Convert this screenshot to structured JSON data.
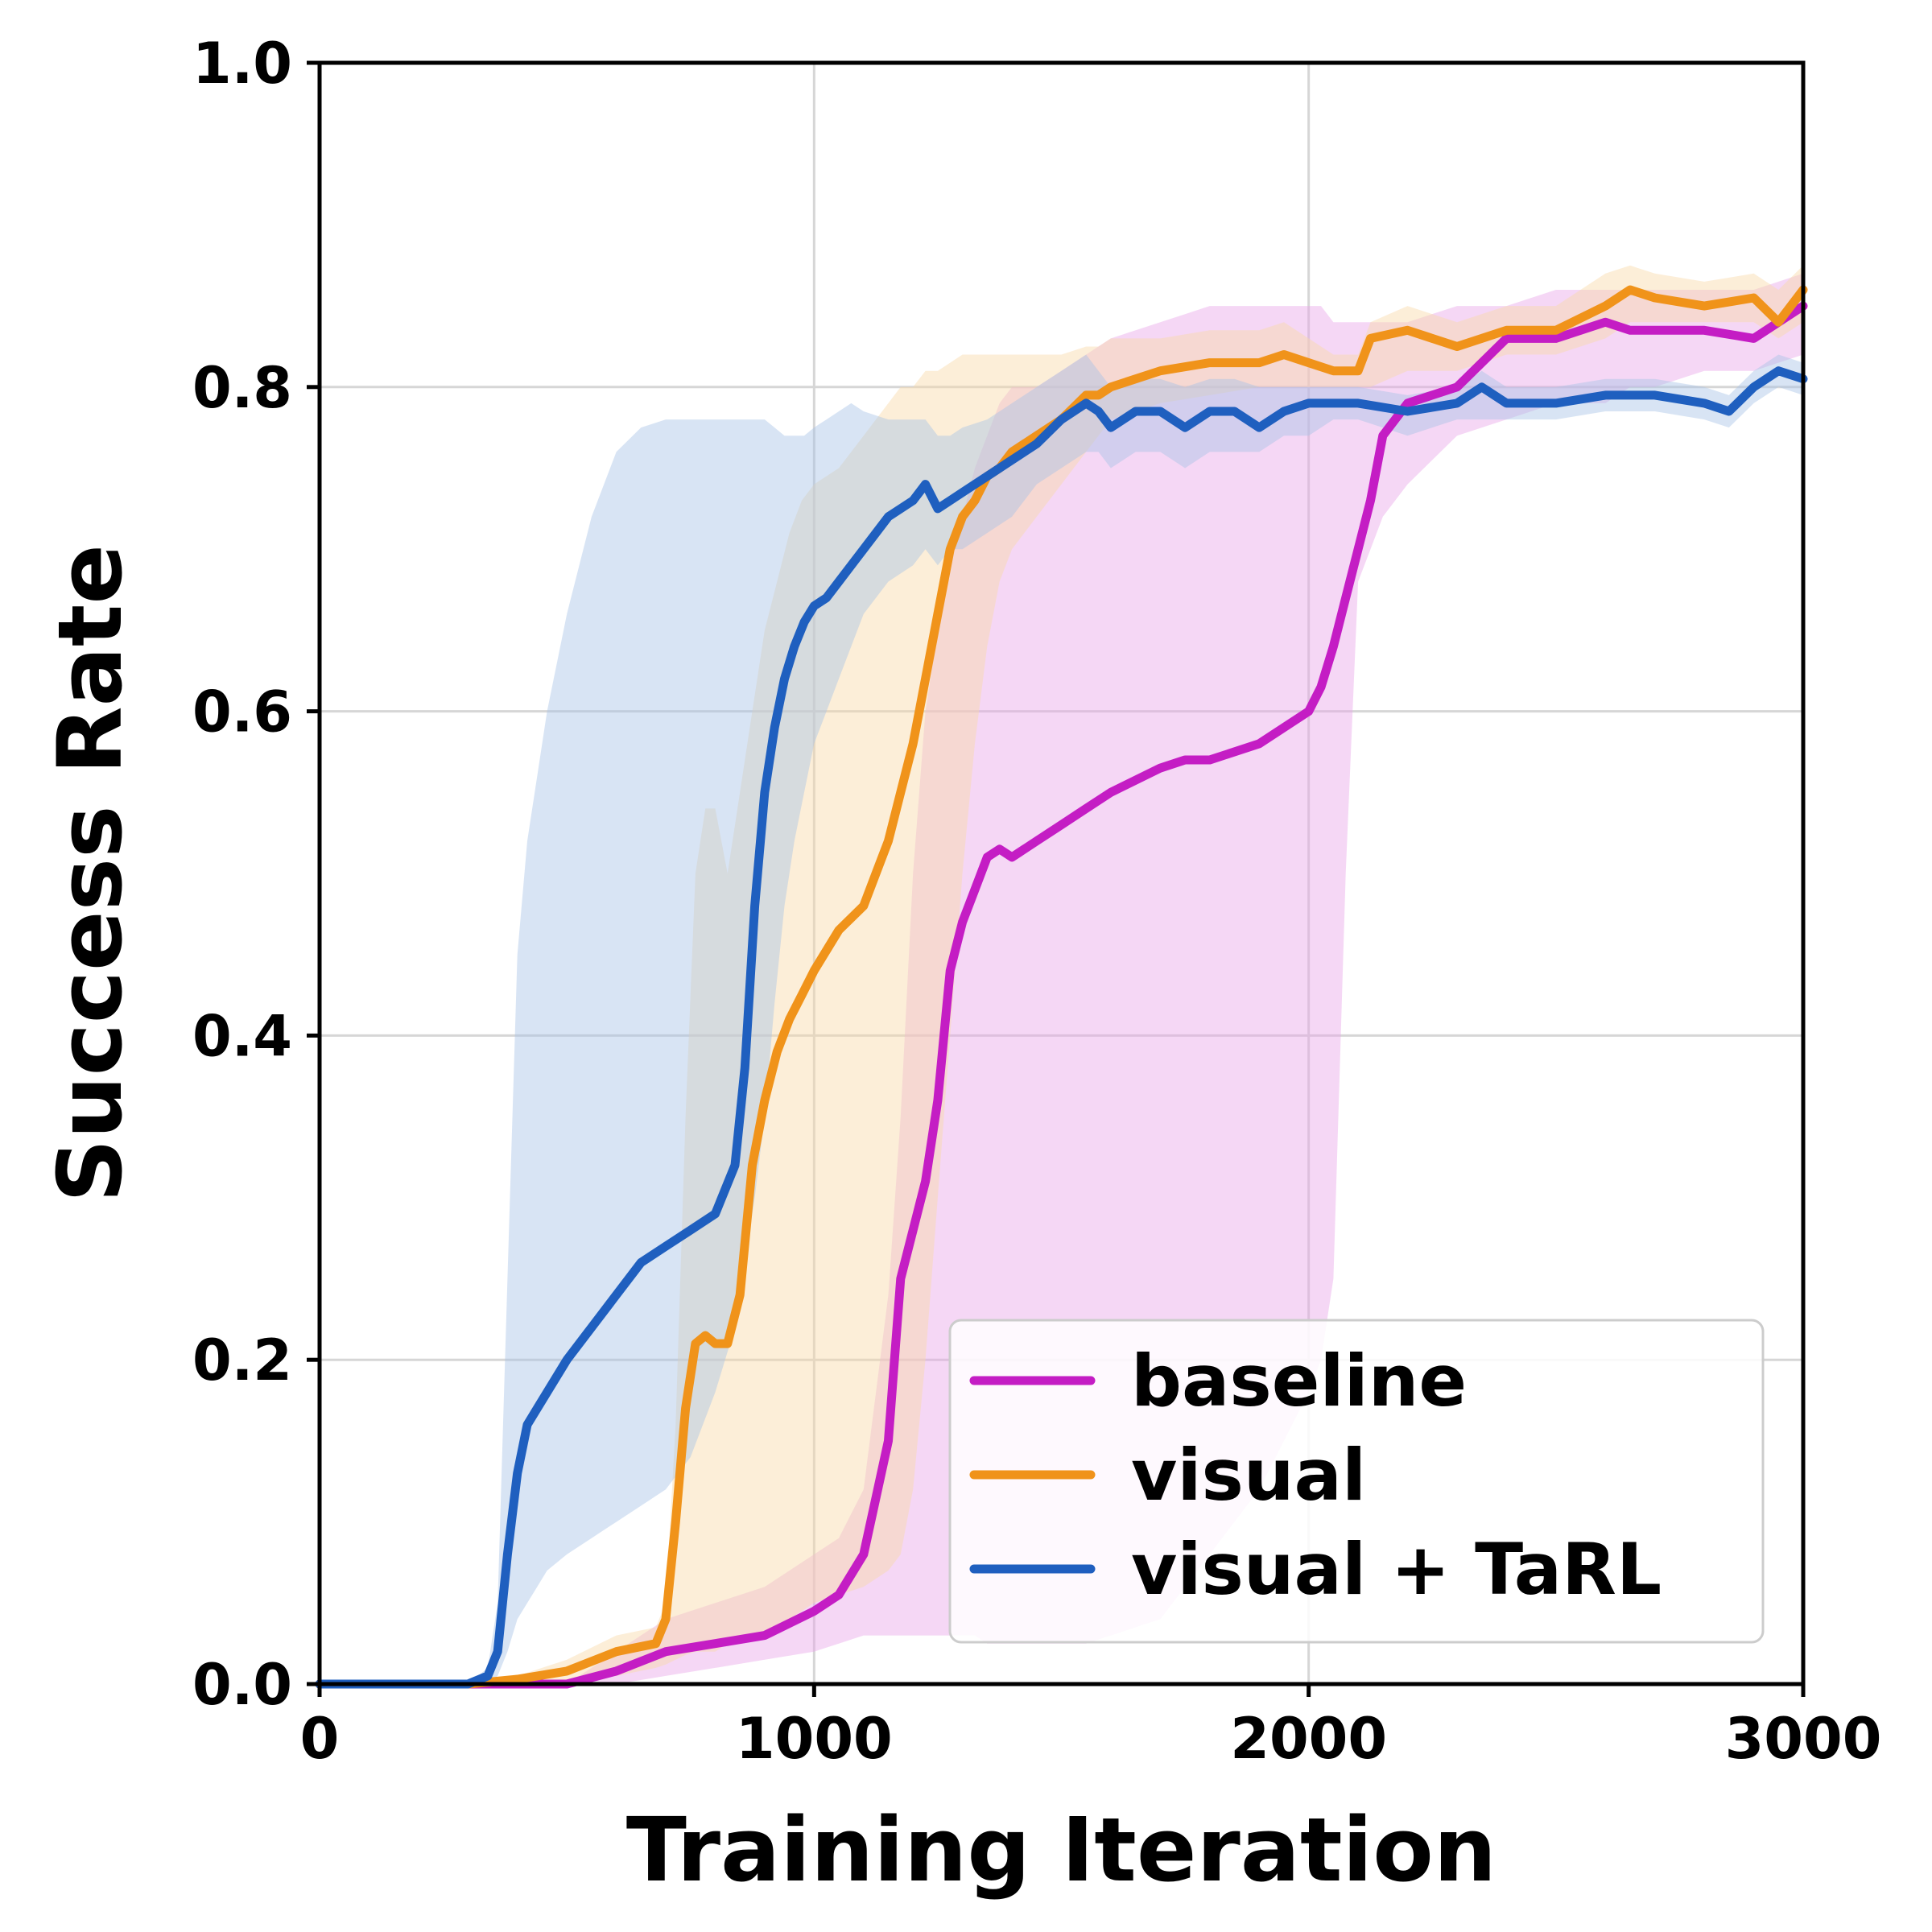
{
  "chart_data": {
    "type": "line",
    "title": "",
    "xlabel": "Training Iteration",
    "ylabel": "Success Rate",
    "xlim": [
      0,
      3000
    ],
    "ylim": [
      0,
      1.0
    ],
    "xticks": [
      0,
      1000,
      2000,
      3000
    ],
    "yticks": [
      0.0,
      0.2,
      0.4,
      0.6,
      0.8,
      1.0
    ],
    "xtick_labels": [
      "0",
      "1000",
      "2000",
      "3000"
    ],
    "ytick_labels": [
      "0.0",
      "0.2",
      "0.4",
      "0.6",
      "0.8",
      "1.0"
    ],
    "grid": true,
    "legend_position": "lower-right",
    "series": [
      {
        "name": "baseline",
        "color": "#C41DC4",
        "band_color": "#E9A6E9",
        "x": [
          0,
          300,
          500,
          600,
          700,
          800,
          900,
          1000,
          1050,
          1100,
          1150,
          1175,
          1200,
          1225,
          1250,
          1275,
          1300,
          1325,
          1350,
          1375,
          1400,
          1450,
          1500,
          1550,
          1600,
          1700,
          1750,
          1800,
          1900,
          2000,
          2025,
          2050,
          2075,
          2100,
          2125,
          2150,
          2200,
          2300,
          2400,
          2500,
          2600,
          2650,
          2700,
          2800,
          2900,
          3000
        ],
        "y": [
          0.0,
          0.0,
          0.0,
          0.008,
          0.02,
          0.025,
          0.03,
          0.045,
          0.055,
          0.08,
          0.15,
          0.25,
          0.28,
          0.31,
          0.36,
          0.44,
          0.47,
          0.49,
          0.51,
          0.515,
          0.51,
          0.52,
          0.53,
          0.54,
          0.55,
          0.565,
          0.57,
          0.57,
          0.58,
          0.6,
          0.615,
          0.64,
          0.67,
          0.7,
          0.73,
          0.77,
          0.79,
          0.8,
          0.83,
          0.83,
          0.84,
          0.835,
          0.835,
          0.835,
          0.83,
          0.85
        ],
        "lower": [
          0.0,
          0.0,
          0.0,
          0.0,
          0.005,
          0.01,
          0.015,
          0.02,
          0.025,
          0.03,
          0.03,
          0.03,
          0.03,
          0.03,
          0.03,
          0.03,
          0.03,
          0.03,
          0.025,
          0.025,
          0.025,
          0.025,
          0.025,
          0.025,
          0.03,
          0.04,
          0.06,
          0.08,
          0.12,
          0.18,
          0.2,
          0.25,
          0.5,
          0.68,
          0.7,
          0.72,
          0.74,
          0.77,
          0.78,
          0.79,
          0.79,
          0.8,
          0.8,
          0.81,
          0.81,
          0.82
        ],
        "upper": [
          0.0,
          0.0,
          0.0,
          0.02,
          0.04,
          0.05,
          0.06,
          0.08,
          0.09,
          0.12,
          0.24,
          0.35,
          0.5,
          0.6,
          0.65,
          0.7,
          0.72,
          0.75,
          0.77,
          0.79,
          0.8,
          0.8,
          0.81,
          0.82,
          0.83,
          0.84,
          0.845,
          0.85,
          0.85,
          0.85,
          0.85,
          0.84,
          0.84,
          0.84,
          0.84,
          0.84,
          0.84,
          0.85,
          0.85,
          0.86,
          0.86,
          0.86,
          0.86,
          0.86,
          0.86,
          0.87
        ]
      },
      {
        "name": "visual",
        "color": "#F0931A",
        "band_color": "#F8D9A8",
        "x": [
          0,
          300,
          400,
          500,
          600,
          680,
          700,
          720,
          740,
          760,
          780,
          800,
          825,
          850,
          875,
          900,
          925,
          950,
          975,
          1000,
          1050,
          1100,
          1125,
          1150,
          1175,
          1200,
          1225,
          1250,
          1275,
          1300,
          1325,
          1350,
          1375,
          1400,
          1450,
          1500,
          1550,
          1575,
          1600,
          1700,
          1800,
          1900,
          1950,
          2000,
          2050,
          2100,
          2125,
          2200,
          2300,
          2400,
          2500,
          2600,
          2650,
          2700,
          2800,
          2900,
          2950,
          3000
        ],
        "y": [
          0.0,
          0.0,
          0.003,
          0.008,
          0.02,
          0.025,
          0.04,
          0.1,
          0.17,
          0.21,
          0.215,
          0.21,
          0.21,
          0.24,
          0.32,
          0.36,
          0.39,
          0.41,
          0.425,
          0.44,
          0.465,
          0.48,
          0.5,
          0.52,
          0.55,
          0.58,
          0.62,
          0.66,
          0.7,
          0.72,
          0.73,
          0.745,
          0.75,
          0.76,
          0.77,
          0.78,
          0.795,
          0.795,
          0.8,
          0.81,
          0.815,
          0.815,
          0.82,
          0.815,
          0.81,
          0.81,
          0.83,
          0.835,
          0.825,
          0.835,
          0.835,
          0.85,
          0.86,
          0.855,
          0.85,
          0.855,
          0.84,
          0.86
        ],
        "lower": [
          0.0,
          0.0,
          0.0,
          0.0,
          0.005,
          0.01,
          0.012,
          0.015,
          0.018,
          0.02,
          0.02,
          0.02,
          0.025,
          0.028,
          0.03,
          0.03,
          0.035,
          0.04,
          0.045,
          0.05,
          0.055,
          0.06,
          0.065,
          0.07,
          0.08,
          0.12,
          0.2,
          0.3,
          0.4,
          0.5,
          0.58,
          0.64,
          0.68,
          0.7,
          0.72,
          0.74,
          0.76,
          0.77,
          0.78,
          0.79,
          0.795,
          0.8,
          0.8,
          0.8,
          0.8,
          0.8,
          0.8,
          0.81,
          0.81,
          0.82,
          0.82,
          0.83,
          0.84,
          0.84,
          0.84,
          0.84,
          0.83,
          0.84
        ],
        "upper": [
          0.0,
          0.0,
          0.005,
          0.015,
          0.03,
          0.035,
          0.05,
          0.16,
          0.35,
          0.5,
          0.54,
          0.54,
          0.5,
          0.55,
          0.6,
          0.65,
          0.68,
          0.71,
          0.73,
          0.74,
          0.75,
          0.77,
          0.78,
          0.79,
          0.8,
          0.8,
          0.81,
          0.81,
          0.815,
          0.82,
          0.82,
          0.82,
          0.82,
          0.82,
          0.82,
          0.82,
          0.825,
          0.825,
          0.83,
          0.83,
          0.835,
          0.835,
          0.84,
          0.83,
          0.82,
          0.82,
          0.84,
          0.85,
          0.84,
          0.85,
          0.85,
          0.87,
          0.875,
          0.87,
          0.865,
          0.87,
          0.86,
          0.875
        ]
      },
      {
        "name": "visual + TaRL",
        "color": "#1F5FBF",
        "band_color": "#A9C3E6",
        "x": [
          0,
          300,
          340,
          360,
          380,
          400,
          420,
          440,
          460,
          500,
          550,
          600,
          650,
          700,
          750,
          800,
          840,
          860,
          880,
          900,
          920,
          940,
          960,
          980,
          1000,
          1025,
          1050,
          1075,
          1100,
          1150,
          1200,
          1225,
          1250,
          1275,
          1300,
          1350,
          1400,
          1450,
          1500,
          1550,
          1575,
          1600,
          1650,
          1700,
          1750,
          1800,
          1850,
          1900,
          1950,
          2000,
          2050,
          2100,
          2200,
          2300,
          2350,
          2400,
          2500,
          2600,
          2700,
          2800,
          2850,
          2900,
          2950,
          3000
        ],
        "y": [
          0.0,
          0.0,
          0.005,
          0.02,
          0.08,
          0.13,
          0.16,
          0.17,
          0.18,
          0.2,
          0.22,
          0.24,
          0.26,
          0.27,
          0.28,
          0.29,
          0.32,
          0.38,
          0.48,
          0.55,
          0.59,
          0.62,
          0.64,
          0.655,
          0.665,
          0.67,
          0.68,
          0.69,
          0.7,
          0.72,
          0.73,
          0.74,
          0.725,
          0.73,
          0.735,
          0.745,
          0.755,
          0.765,
          0.78,
          0.79,
          0.785,
          0.775,
          0.785,
          0.785,
          0.775,
          0.785,
          0.785,
          0.775,
          0.785,
          0.79,
          0.79,
          0.79,
          0.785,
          0.79,
          0.8,
          0.79,
          0.79,
          0.795,
          0.795,
          0.79,
          0.785,
          0.8,
          0.81,
          0.805
        ],
        "lower": [
          0.0,
          0.0,
          0.0,
          0.005,
          0.02,
          0.04,
          0.05,
          0.06,
          0.07,
          0.08,
          0.09,
          0.1,
          0.11,
          0.12,
          0.14,
          0.18,
          0.22,
          0.26,
          0.3,
          0.35,
          0.42,
          0.48,
          0.52,
          0.55,
          0.58,
          0.6,
          0.62,
          0.64,
          0.66,
          0.68,
          0.69,
          0.7,
          0.69,
          0.7,
          0.7,
          0.71,
          0.72,
          0.74,
          0.75,
          0.76,
          0.76,
          0.75,
          0.76,
          0.76,
          0.75,
          0.76,
          0.76,
          0.76,
          0.77,
          0.77,
          0.78,
          0.78,
          0.77,
          0.78,
          0.78,
          0.78,
          0.78,
          0.785,
          0.785,
          0.78,
          0.775,
          0.79,
          0.8,
          0.795
        ],
        "upper": [
          0.0,
          0.0,
          0.01,
          0.05,
          0.25,
          0.45,
          0.52,
          0.56,
          0.6,
          0.66,
          0.72,
          0.76,
          0.775,
          0.78,
          0.78,
          0.78,
          0.78,
          0.78,
          0.78,
          0.78,
          0.775,
          0.77,
          0.77,
          0.77,
          0.775,
          0.78,
          0.785,
          0.79,
          0.785,
          0.78,
          0.78,
          0.78,
          0.77,
          0.77,
          0.775,
          0.78,
          0.79,
          0.8,
          0.81,
          0.82,
          0.81,
          0.8,
          0.805,
          0.805,
          0.8,
          0.805,
          0.805,
          0.8,
          0.8,
          0.8,
          0.8,
          0.8,
          0.795,
          0.8,
          0.81,
          0.8,
          0.8,
          0.805,
          0.805,
          0.8,
          0.795,
          0.81,
          0.82,
          0.815
        ]
      }
    ]
  }
}
